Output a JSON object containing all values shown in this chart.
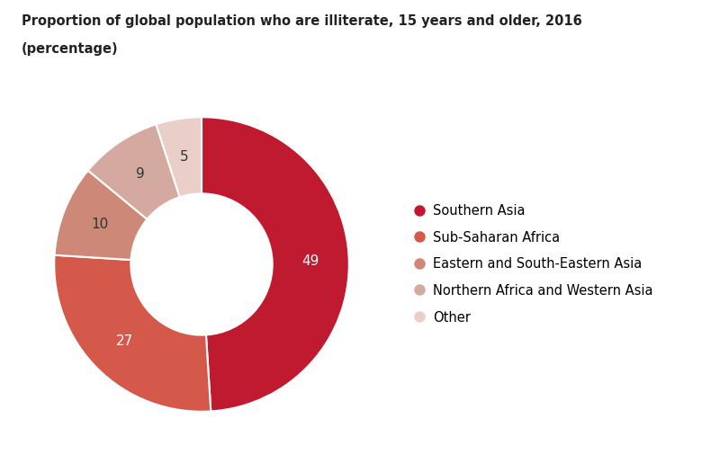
{
  "title_line1": "Proportion of global population who are illiterate, 15 years and older, 2016",
  "title_line2": "(percentage)",
  "labels": [
    "Southern Asia",
    "Sub-Saharan Africa",
    "Eastern and South-Eastern Asia",
    "Northern Africa and Western Asia",
    "Other"
  ],
  "values": [
    49,
    27,
    10,
    9,
    5
  ],
  "colors": [
    "#bf1a2f",
    "#d4594a",
    "#cd8878",
    "#d4aaa0",
    "#eacfc8"
  ],
  "label_colors": [
    "white",
    "white",
    "#333333",
    "#333333",
    "#333333"
  ],
  "background_color": "#ffffff",
  "title_fontsize": 10.5,
  "label_fontsize": 11,
  "legend_fontsize": 10.5
}
